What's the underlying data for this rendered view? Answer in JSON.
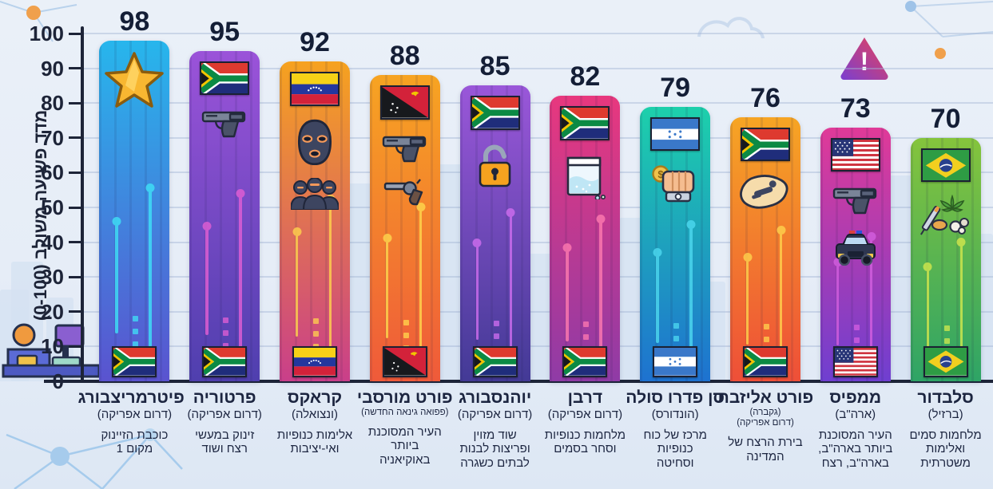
{
  "chart_data": {
    "type": "bar",
    "title": "",
    "ylabel": "מדד פשיעה משולב (0-100)",
    "xlabel": "",
    "ylim": [
      0,
      100
    ],
    "yticks": [
      0,
      10,
      20,
      30,
      40,
      50,
      60,
      70,
      80,
      90,
      100
    ],
    "grid": true,
    "categories": [
      "פיטרמריצבורג",
      "פרטוריה",
      "קראקס",
      "פורט מורסבי",
      "יוהנסבורג",
      "דרבן",
      "סן פדרו סולה",
      "פורט אליזבת",
      "ממפיס",
      "סלבדור"
    ],
    "values": [
      98,
      95,
      92,
      88,
      85,
      82,
      79,
      76,
      73,
      70
    ]
  },
  "y_axis": {
    "title": "מדד פשיעה משולב (0-100)"
  },
  "decor": {
    "alert_text": "!"
  },
  "bars": [
    {
      "value": 98,
      "city": "פיטרמריצבורג",
      "country": "(דרום אפריקה)",
      "desc": "כוכבת הזיינוק\nמקום 1",
      "flag": "za",
      "top_flag": false,
      "icons": [
        "star"
      ],
      "color_top": "#27b6ec",
      "color_bottom": "#5a53cf",
      "accent": "#3fe2f7"
    },
    {
      "value": 95,
      "city": "פרטוריה",
      "country": "(דרום אפריקה)",
      "desc": "זינוק במעשי\nרצח ושוד",
      "flag": "za",
      "top_flag": true,
      "icons": [
        "pistol"
      ],
      "color_top": "#9b53d9",
      "color_bottom": "#4f3fae",
      "accent": "#e35fd4"
    },
    {
      "value": 92,
      "city": "קראקס",
      "country": "(ונצואלה)",
      "desc": "אלימות כנופיות\nואי-יציבות",
      "flag": "ve",
      "top_flag": true,
      "icons": [
        "balaclava",
        "gang"
      ],
      "color_top": "#f6a21f",
      "color_bottom": "#c93f8a",
      "accent": "#ffd34d"
    },
    {
      "value": 88,
      "city": "פורט מורסבי",
      "country": "(פפואה גינאה החדשה)",
      "desc": "העיר המסוכנת\nביותר\nבאוקיאניה",
      "flag": "pg",
      "top_flag": true,
      "icons": [
        "pistol",
        "revolver"
      ],
      "color_top": "#f7a422",
      "color_bottom": "#ef5a3a",
      "accent": "#ffd84d"
    },
    {
      "value": 85,
      "city": "יוהנסבורג",
      "country": "(דרום אפריקה)",
      "desc": "שוד מזוין\nופריצות לבנות\nלבתים כשגרה",
      "flag": "za",
      "top_flag": true,
      "icons": [
        "padlock"
      ],
      "color_top": "#9a57d9",
      "color_bottom": "#433a96",
      "accent": "#d06ef0"
    },
    {
      "value": 82,
      "city": "דרבן",
      "country": "(דרום אפריקה)",
      "desc": "מלחמות כנופיות\nוסחר בסמים",
      "flag": "za",
      "top_flag": true,
      "icons": [
        "baggie"
      ],
      "color_top": "#e8387e",
      "color_bottom": "#8f3ba6",
      "accent": "#ff7ab0"
    },
    {
      "value": 79,
      "city": "סן פדרו סולה",
      "country": "(הונדורס)",
      "desc": "מרכז של כוח\nכנופיות\nוסחיטה",
      "flag": "hn",
      "top_flag": true,
      "icons": [
        "fist"
      ],
      "color_top": "#1dd0ab",
      "color_bottom": "#1e72d0",
      "accent": "#4dd9f0"
    },
    {
      "value": 76,
      "city": "פורט אליזבת",
      "country": "(גקברה)\n(דרום אפריקה)",
      "desc": "בירת הרצח של\nהמדינה",
      "flag": "za",
      "top_flag": true,
      "icons": [
        "body"
      ],
      "color_top": "#f6a524",
      "color_bottom": "#ee4f38",
      "accent": "#ffd34d"
    },
    {
      "value": 73,
      "city": "ממפיס",
      "country": "(ארה\"ב)",
      "desc": "העיר המסוכנת\nביותר בארה\"ב,\nבארה\"ב, רצח",
      "flag": "us",
      "top_flag": true,
      "icons": [
        "pistol",
        "police"
      ],
      "color_top": "#e03a98",
      "color_bottom": "#6f3fd0",
      "accent": "#d45fe0"
    },
    {
      "value": 70,
      "city": "סלבדור",
      "country": "(ברזיל)",
      "desc": "מלחמות סמים\nואלימות\nמשטרתית",
      "flag": "br",
      "top_flag": true,
      "icons": [
        "drugs"
      ],
      "color_top": "#85c43c",
      "color_bottom": "#2ea466",
      "accent": "#d3e84d"
    }
  ]
}
